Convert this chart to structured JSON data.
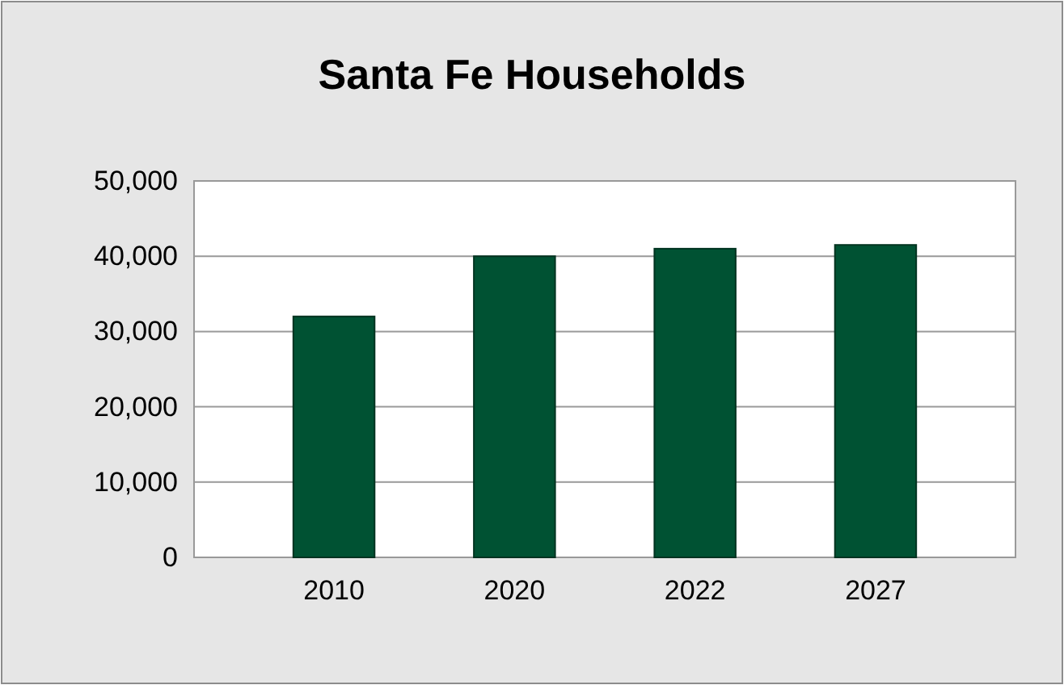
{
  "chart_data": {
    "type": "bar",
    "title": "Santa Fe Households",
    "categories": [
      "2010",
      "2020",
      "2022",
      "2027"
    ],
    "values": [
      32000,
      40000,
      41000,
      41500
    ],
    "color": "#005233",
    "ylim": [
      0,
      50000
    ],
    "yticks": [
      {
        "value": 0,
        "label": "0"
      },
      {
        "value": 10000,
        "label": "10,000"
      },
      {
        "value": 20000,
        "label": "20,000"
      },
      {
        "value": 30000,
        "label": "30,000"
      },
      {
        "value": 40000,
        "label": "40,000"
      },
      {
        "value": 50000,
        "label": "50,000"
      }
    ],
    "grid": "y"
  }
}
